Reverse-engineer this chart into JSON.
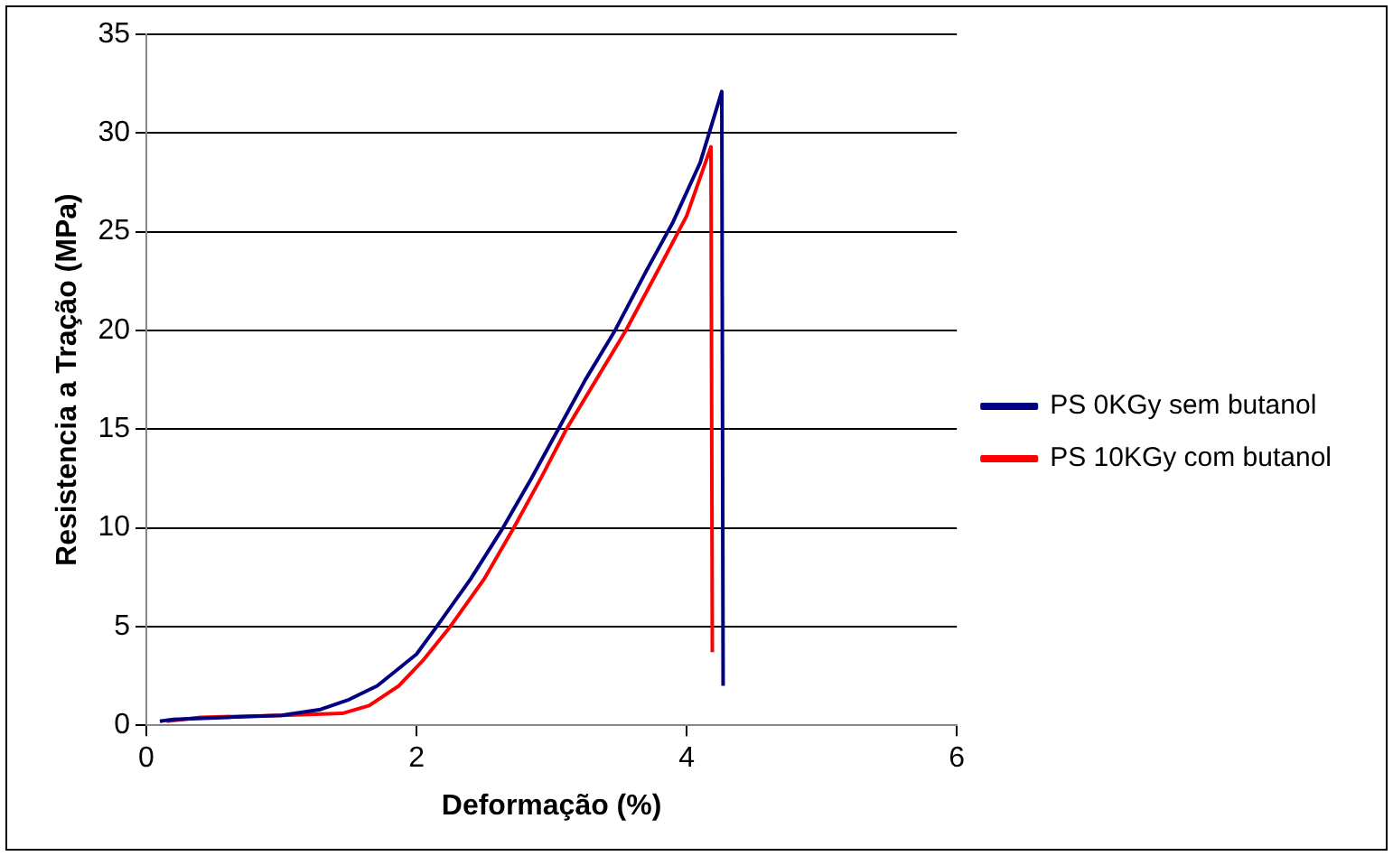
{
  "chart_data": {
    "type": "line",
    "xlabel": "Deformação (%)",
    "ylabel": "Resistencia a Tração (MPa)",
    "xlim": [
      0,
      6
    ],
    "xticks": [
      0,
      2,
      4,
      6
    ],
    "ylim": [
      0,
      35
    ],
    "yticks": [
      0,
      5,
      10,
      15,
      20,
      25,
      30,
      35
    ],
    "grid": "y",
    "legend": "right",
    "marker": "none",
    "line_style": "solid",
    "series": [
      {
        "name": "PS 0KGy sem butanol",
        "color": "#000080",
        "x": [
          0.1,
          0.2,
          0.6,
          1.0,
          1.29,
          1.5,
          1.71,
          2.0,
          2.15,
          2.4,
          2.64,
          2.85,
          3.05,
          3.25,
          3.47,
          3.7,
          3.9,
          4.1,
          4.26,
          4.27
        ],
        "values": [
          0.2,
          0.3,
          0.4,
          0.5,
          0.8,
          1.3,
          2.0,
          3.6,
          5.0,
          7.4,
          10.0,
          12.5,
          15.0,
          17.5,
          20.0,
          23.0,
          25.5,
          28.5,
          32.1,
          2.0
        ]
      },
      {
        "name": "PS 10KGy com butanol",
        "color": "#ff0000",
        "x": [
          0.15,
          0.4,
          1.0,
          1.45,
          1.65,
          1.87,
          2.05,
          2.25,
          2.5,
          2.72,
          2.92,
          3.11,
          3.33,
          3.55,
          3.8,
          4.0,
          4.18,
          4.19
        ],
        "values": [
          0.2,
          0.4,
          0.5,
          0.6,
          1.0,
          2.0,
          3.3,
          5.0,
          7.4,
          10.0,
          12.5,
          15.0,
          17.5,
          20.0,
          23.2,
          25.8,
          29.3,
          3.7
        ]
      }
    ]
  }
}
